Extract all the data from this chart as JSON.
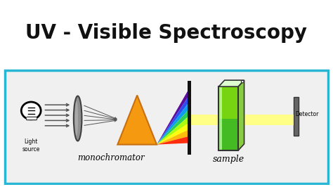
{
  "title": "UV - Visible Spectroscopy",
  "title_fontsize": 20,
  "title_fontweight": "bold",
  "title_color": "#111111",
  "bg_color": "#ffffff",
  "border_color": "#29b6d4",
  "diagram_bg": "#f0f0f0",
  "label_light": "Light\nsource",
  "label_mono": "monochromator",
  "label_sample": "sample",
  "label_detector": "Detector",
  "arrow_color": "#555555",
  "prism_color": "#f59a10",
  "prism_edge": "#c87010",
  "lens_color_main": "#888888",
  "lens_color_edge": "#444444",
  "slit_color": "#111111",
  "detector_color": "#777777",
  "spectrum_colors": [
    "#440088",
    "#2233ff",
    "#0099ff",
    "#00ee44",
    "#aaff00",
    "#ffff00",
    "#ffaa00",
    "#ff3300"
  ],
  "yellow_beam_color": "#ffff88",
  "cuvette_green": "#44bb22",
  "cuvette_yellow_green": "#aaee00",
  "cuvette_glass_color": "#ccffcc"
}
